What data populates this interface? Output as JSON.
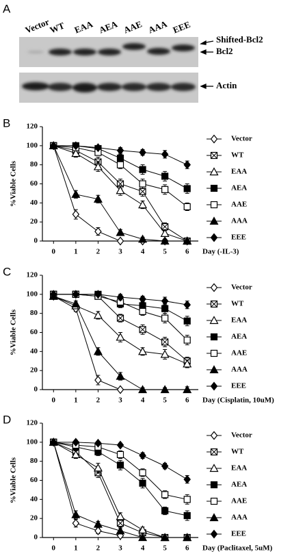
{
  "blot": {
    "panel": "A",
    "lanes": [
      "Vector",
      "WT",
      "EAA",
      "AEA",
      "AAE",
      "AAA",
      "EEE"
    ],
    "bands": [
      "Shifted-Bcl2",
      "Bcl2",
      "Actin"
    ]
  },
  "chart_data": [
    {
      "type": "line",
      "panel": "B",
      "y_label": "%Viable Cells",
      "x_label": "Day (-IL-3)",
      "x": [
        0,
        1,
        2,
        3,
        4,
        5,
        6
      ],
      "xlim": [
        -0.5,
        6.5
      ],
      "xticks": [
        0,
        1,
        2,
        3,
        4,
        5,
        6
      ],
      "ylim": [
        0,
        120
      ],
      "yticks": [
        0,
        20,
        40,
        60,
        80,
        100,
        120
      ],
      "series": [
        {
          "name": "Vector",
          "color": "#000000",
          "marker": "diamond-open",
          "values": [
            100,
            28,
            10,
            0,
            0,
            0,
            0
          ],
          "errors": [
            2,
            5,
            4,
            1,
            1,
            1,
            1
          ]
        },
        {
          "name": "WT",
          "color": "#000000",
          "marker": "square-x",
          "values": [
            100,
            95,
            83,
            60,
            52,
            15,
            0
          ],
          "errors": [
            2,
            3,
            5,
            5,
            5,
            4,
            1
          ]
        },
        {
          "name": "EAA",
          "color": "#000000",
          "marker": "triangle-open",
          "values": [
            100,
            92,
            78,
            53,
            38,
            8,
            0
          ],
          "errors": [
            2,
            4,
            5,
            5,
            4,
            3,
            1
          ]
        },
        {
          "name": "AEA",
          "color": "#000000",
          "marker": "square-filled",
          "values": [
            100,
            100,
            97,
            87,
            75,
            68,
            55
          ],
          "errors": [
            2,
            2,
            3,
            4,
            5,
            5,
            5
          ]
        },
        {
          "name": "AAE",
          "color": "#000000",
          "marker": "square-open",
          "values": [
            100,
            98,
            93,
            80,
            60,
            54,
            36
          ],
          "errors": [
            2,
            2,
            3,
            4,
            5,
            5,
            4
          ]
        },
        {
          "name": "AAA",
          "color": "#000000",
          "marker": "triangle-filled",
          "values": [
            100,
            49,
            44,
            9,
            2,
            0,
            0
          ],
          "errors": [
            2,
            4,
            4,
            3,
            2,
            1,
            1
          ]
        },
        {
          "name": "EEE",
          "color": "#000000",
          "marker": "diamond-filled",
          "values": [
            100,
            100,
            98,
            95,
            93,
            91,
            80
          ],
          "errors": [
            2,
            2,
            2,
            3,
            3,
            4,
            4
          ]
        }
      ]
    },
    {
      "type": "line",
      "panel": "C",
      "y_label": "%Viable Cells",
      "x_label": "Day (Cisplatin, 10uM)",
      "x": [
        0,
        1,
        2,
        3,
        4,
        5,
        6
      ],
      "xlim": [
        -0.5,
        6.5
      ],
      "xticks": [
        0,
        1,
        2,
        3,
        4,
        5,
        6
      ],
      "ylim": [
        0,
        120
      ],
      "yticks": [
        0,
        20,
        40,
        60,
        80,
        100,
        120
      ],
      "series": [
        {
          "name": "Vector",
          "color": "#000000",
          "marker": "diamond-open",
          "values": [
            98,
            85,
            10,
            0,
            null,
            null,
            null
          ],
          "errors": [
            2,
            3,
            5,
            1,
            null,
            null,
            null
          ]
        },
        {
          "name": "WT",
          "color": "#000000",
          "marker": "square-x",
          "values": [
            100,
            100,
            98,
            75,
            63,
            50,
            30
          ],
          "errors": [
            2,
            2,
            3,
            4,
            5,
            5,
            4
          ]
        },
        {
          "name": "EAA",
          "color": "#000000",
          "marker": "triangle-open",
          "values": [
            98,
            88,
            78,
            55,
            40,
            37,
            27
          ],
          "errors": [
            2,
            3,
            4,
            5,
            4,
            5,
            4
          ]
        },
        {
          "name": "AEA",
          "color": "#000000",
          "marker": "square-filled",
          "values": [
            100,
            100,
            100,
            90,
            88,
            85,
            72
          ],
          "errors": [
            2,
            2,
            2,
            4,
            5,
            5,
            5
          ]
        },
        {
          "name": "AAE",
          "color": "#000000",
          "marker": "square-open",
          "values": [
            100,
            100,
            98,
            92,
            82,
            75,
            52
          ],
          "errors": [
            2,
            2,
            2,
            4,
            4,
            5,
            5
          ]
        },
        {
          "name": "AAA",
          "color": "#000000",
          "marker": "triangle-filled",
          "values": [
            98,
            90,
            40,
            14,
            0,
            0,
            0
          ],
          "errors": [
            2,
            3,
            4,
            4,
            2,
            2,
            3
          ]
        },
        {
          "name": "EEE",
          "color": "#000000",
          "marker": "diamond-filled",
          "values": [
            100,
            100,
            100,
            97,
            95,
            93,
            89
          ],
          "errors": [
            2,
            2,
            2,
            3,
            3,
            4,
            4
          ]
        }
      ]
    },
    {
      "type": "line",
      "panel": "D",
      "y_label": "%Viable Cells",
      "x_label": "Day (Paclitaxel, 5uM)",
      "x": [
        0,
        1,
        2,
        3,
        4,
        5,
        6
      ],
      "xlim": [
        -0.5,
        6.5
      ],
      "xticks": [
        0,
        1,
        2,
        3,
        4,
        5,
        6
      ],
      "ylim": [
        0,
        120
      ],
      "yticks": [
        0,
        20,
        40,
        60,
        80,
        100,
        120
      ],
      "series": [
        {
          "name": "Vector",
          "color": "#000000",
          "marker": "diamond-open",
          "values": [
            100,
            15,
            7,
            2,
            null,
            null,
            null
          ],
          "errors": [
            2,
            4,
            3,
            2,
            null,
            null,
            null
          ]
        },
        {
          "name": "WT",
          "color": "#000000",
          "marker": "square-x",
          "values": [
            100,
            90,
            68,
            15,
            5,
            0,
            0
          ],
          "errors": [
            2,
            4,
            5,
            4,
            3,
            1,
            1
          ]
        },
        {
          "name": "EAA",
          "color": "#000000",
          "marker": "triangle-open",
          "values": [
            100,
            87,
            73,
            22,
            8,
            0,
            0
          ],
          "errors": [
            2,
            4,
            5,
            4,
            3,
            1,
            1
          ]
        },
        {
          "name": "AEA",
          "color": "#000000",
          "marker": "square-filled",
          "values": [
            100,
            95,
            90,
            76,
            57,
            28,
            23
          ],
          "errors": [
            2,
            3,
            4,
            5,
            5,
            4,
            5
          ]
        },
        {
          "name": "AAE",
          "color": "#000000",
          "marker": "square-open",
          "values": [
            100,
            97,
            95,
            87,
            68,
            45,
            40
          ],
          "errors": [
            2,
            3,
            3,
            4,
            4,
            4,
            5
          ]
        },
        {
          "name": "AAA",
          "color": "#000000",
          "marker": "triangle-filled",
          "values": [
            100,
            24,
            14,
            7,
            0,
            0,
            0
          ],
          "errors": [
            2,
            4,
            3,
            3,
            1,
            1,
            1
          ]
        },
        {
          "name": "EEE",
          "color": "#000000",
          "marker": "diamond-filled",
          "values": [
            100,
            100,
            99,
            97,
            86,
            75,
            61
          ],
          "errors": [
            2,
            2,
            2,
            2,
            3,
            3,
            4
          ]
        }
      ]
    }
  ]
}
